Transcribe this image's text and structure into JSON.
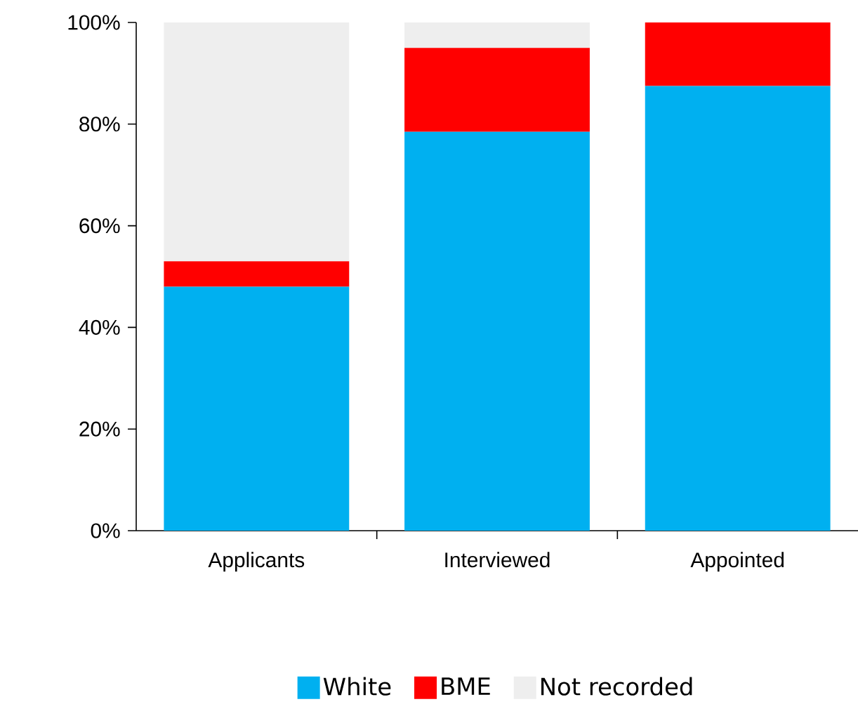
{
  "chart_data": {
    "type": "bar",
    "stacked": true,
    "categories": [
      "Applicants",
      "Interviewed",
      "Appointed"
    ],
    "series": [
      {
        "name": "White",
        "color": "#00b0f0",
        "values": [
          48,
          78.5,
          87.5
        ]
      },
      {
        "name": "BME",
        "color": "#ff0000",
        "values": [
          5,
          16.5,
          12.5
        ]
      },
      {
        "name": "Not recorded",
        "color": "#eeeeee",
        "values": [
          47,
          5,
          0
        ]
      }
    ],
    "ylim": [
      0,
      100
    ],
    "yticks": [
      {
        "value": 0,
        "label": "0%"
      },
      {
        "value": 20,
        "label": "20%"
      },
      {
        "value": 40,
        "label": "40%"
      },
      {
        "value": 60,
        "label": "60%"
      },
      {
        "value": 80,
        "label": "80%"
      },
      {
        "value": 100,
        "label": "100%"
      }
    ],
    "grid": false,
    "legend": "bottom"
  }
}
